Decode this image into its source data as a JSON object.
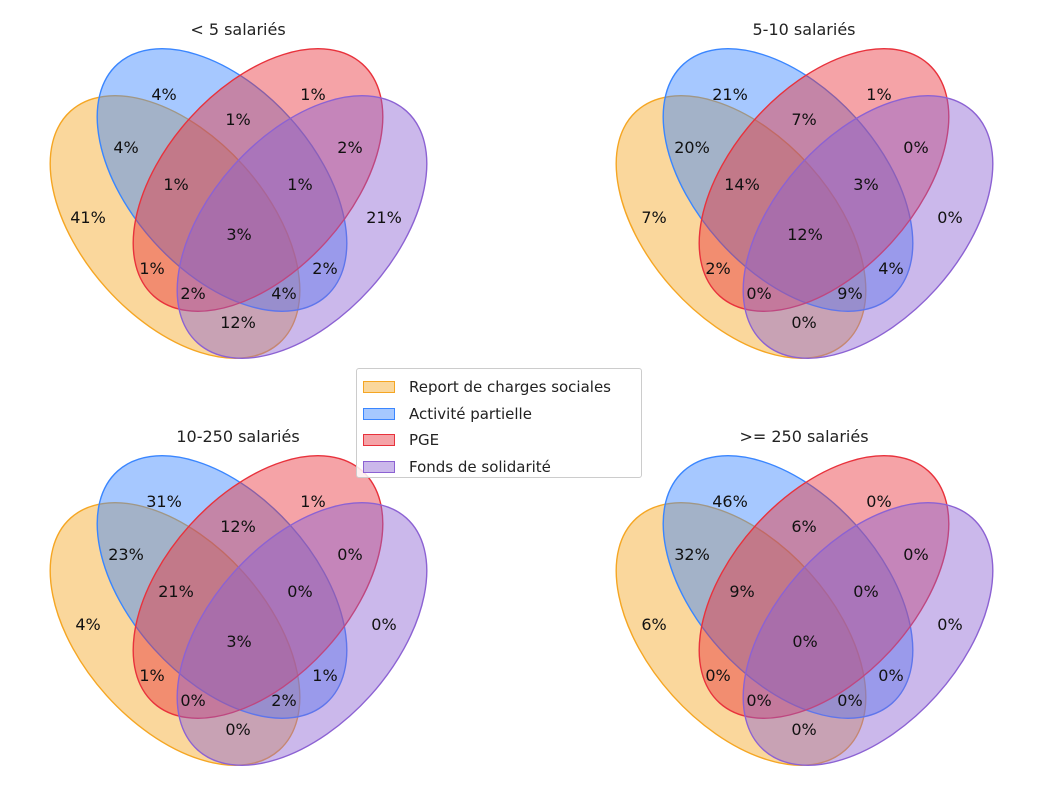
{
  "colors": {
    "report": "#f5a623",
    "activite": "#3a86ff",
    "pge": "#e8323c",
    "fonds": "#8c62d3"
  },
  "legend": [
    {
      "label": "Report de charges sociales",
      "color": "#f5a623"
    },
    {
      "label": "Activité partielle",
      "color": "#3a86ff"
    },
    {
      "label": "PGE",
      "color": "#e8323c"
    },
    {
      "label": "Fonds de solidarité",
      "color": "#8c62d3"
    }
  ],
  "panels": [
    {
      "title": "< 5 salariés",
      "regions": {
        "activite_only": "4%",
        "pge_only": "1%",
        "report_only": "41%",
        "fonds_only": "21%",
        "report_activite": "4%",
        "activite_pge": "1%",
        "pge_fonds": "2%",
        "report_activite_pge": "1%",
        "activite_pge_fonds": "1%",
        "all": "3%",
        "report_pge": "1%",
        "report_activite_pge_fonds_left": "2%",
        "activite_fonds": "2%",
        "report_activite_fonds": "4%",
        "report_fonds": "12%"
      }
    },
    {
      "title": "5-10 salariés",
      "regions": {
        "activite_only": "21%",
        "pge_only": "1%",
        "report_only": "7%",
        "fonds_only": "0%",
        "report_activite": "20%",
        "activite_pge": "7%",
        "pge_fonds": "0%",
        "report_activite_pge": "14%",
        "activite_pge_fonds": "3%",
        "all": "12%",
        "report_pge": "2%",
        "report_activite_pge_fonds_left": "0%",
        "activite_fonds": "4%",
        "report_activite_fonds": "9%",
        "report_fonds": "0%"
      }
    },
    {
      "title": "10-250 salariés",
      "regions": {
        "activite_only": "31%",
        "pge_only": "1%",
        "report_only": "4%",
        "fonds_only": "0%",
        "report_activite": "23%",
        "activite_pge": "12%",
        "pge_fonds": "0%",
        "report_activite_pge": "21%",
        "activite_pge_fonds": "0%",
        "all": "3%",
        "report_pge": "1%",
        "report_activite_pge_fonds_left": "0%",
        "activite_fonds": "1%",
        "report_activite_fonds": "2%",
        "report_fonds": "0%"
      }
    },
    {
      "title": ">= 250 salariés",
      "regions": {
        "activite_only": "46%",
        "pge_only": "0%",
        "report_only": "6%",
        "fonds_only": "0%",
        "report_activite": "32%",
        "activite_pge": "6%",
        "pge_fonds": "0%",
        "report_activite_pge": "9%",
        "activite_pge_fonds": "0%",
        "all": "0%",
        "report_pge": "0%",
        "report_activite_pge_fonds_left": "0%",
        "activite_fonds": "0%",
        "report_activite_fonds": "0%",
        "report_fonds": "0%"
      }
    }
  ]
}
